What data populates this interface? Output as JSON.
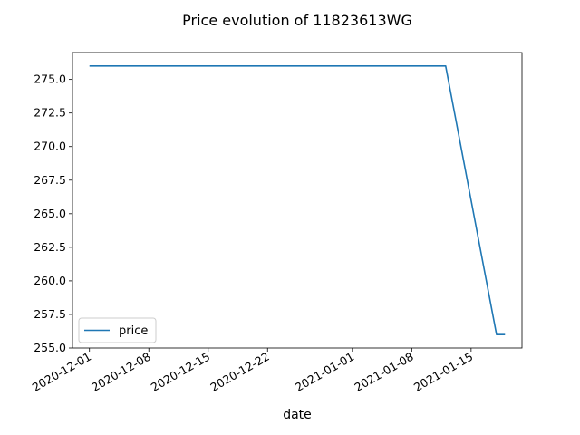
{
  "chart_data": {
    "type": "line",
    "title": "Price evolution of 11823613WG",
    "xlabel": "date",
    "ylabel": "",
    "x_type": "date",
    "xlim": [
      "2020-11-29",
      "2021-01-21"
    ],
    "ylim": [
      255.0,
      277.0
    ],
    "x_ticks": [
      "2020-12-01",
      "2020-12-08",
      "2020-12-15",
      "2020-12-22",
      "2021-01-01",
      "2021-01-08",
      "2021-01-15"
    ],
    "y_ticks": [
      "255.0",
      "257.5",
      "260.0",
      "262.5",
      "265.0",
      "267.5",
      "270.0",
      "272.5",
      "275.0"
    ],
    "grid": false,
    "legend": {
      "position": "lower-left",
      "entries": [
        "price"
      ]
    },
    "series": [
      {
        "name": "price",
        "color": "#1f77b4",
        "points": [
          {
            "x": "2020-12-01",
            "y": 276.0
          },
          {
            "x": "2021-01-12",
            "y": 276.0
          },
          {
            "x": "2021-01-18",
            "y": 256.0
          },
          {
            "x": "2021-01-19",
            "y": 256.0
          }
        ]
      }
    ]
  }
}
